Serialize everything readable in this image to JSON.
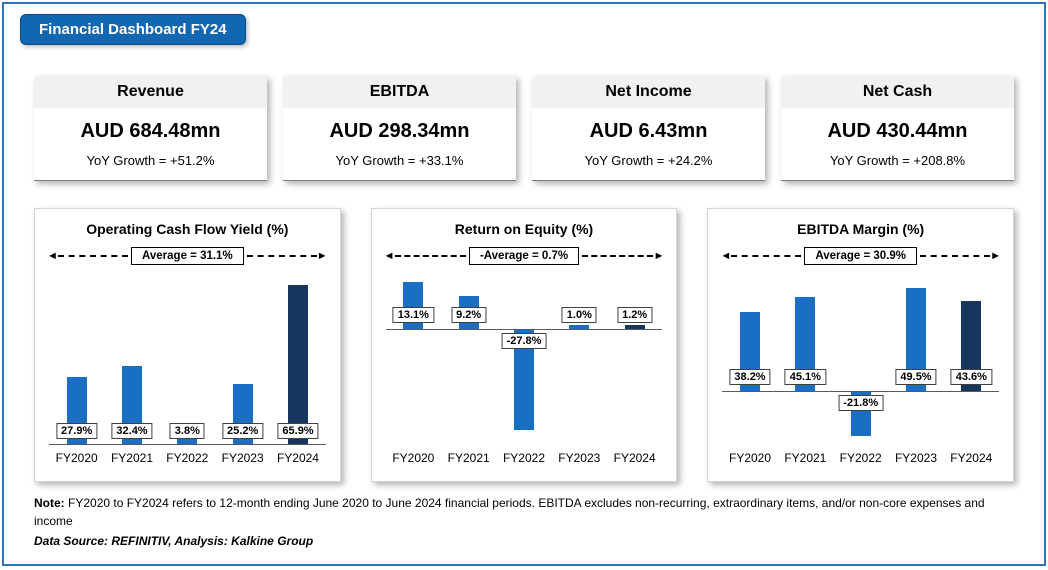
{
  "title": "Financial Dashboard FY24",
  "kpis": [
    {
      "label": "Revenue",
      "value": "AUD 684.48mn",
      "growth": "YoY Growth = +51.2%"
    },
    {
      "label": "EBITDA",
      "value": "AUD 298.34mn",
      "growth": "YoY Growth = +33.1%"
    },
    {
      "label": "Net Income",
      "value": "AUD 6.43mn",
      "growth": "YoY Growth = +24.2%"
    },
    {
      "label": "Net Cash",
      "value": "AUD 430.44mn",
      "growth": "YoY Growth = +208.8%"
    }
  ],
  "chart_data": [
    {
      "type": "bar",
      "title": "Operating Cash Flow Yield (%)",
      "average_label": "Average = 31.1%",
      "categories": [
        "FY2020",
        "FY2021",
        "FY2022",
        "FY2023",
        "FY2024"
      ],
      "values": [
        27.9,
        32.4,
        3.8,
        25.2,
        65.9
      ],
      "labels": [
        "27.9%",
        "32.4%",
        "3.8%",
        "25.2%",
        "65.9%"
      ],
      "ylim": [
        0,
        70
      ],
      "bar_color": "#1a6fc4",
      "last_bar_color": "#17365d",
      "legend": "none",
      "grid": "off"
    },
    {
      "type": "bar",
      "title": "Return on Equity (%)",
      "average_label": "-Average = 0.7%",
      "categories": [
        "FY2020",
        "FY2021",
        "FY2022",
        "FY2023",
        "FY2024"
      ],
      "values": [
        13.1,
        9.2,
        -27.8,
        1.0,
        1.2
      ],
      "labels": [
        "13.1%",
        "9.2%",
        "-27.8%",
        "1.0%",
        "1.2%"
      ],
      "ylim": [
        -32,
        15
      ],
      "bar_color": "#1a6fc4",
      "last_bar_color": "#17365d",
      "legend": "none",
      "grid": "off"
    },
    {
      "type": "bar",
      "title": "EBITDA Margin (%)",
      "average_label": "Average = 30.9%",
      "categories": [
        "FY2020",
        "FY2021",
        "FY2022",
        "FY2023",
        "FY2024"
      ],
      "values": [
        38.2,
        45.1,
        -21.8,
        49.5,
        43.6
      ],
      "labels": [
        "38.2%",
        "45.1%",
        "-21.8%",
        "49.5%",
        "43.6%"
      ],
      "ylim": [
        -26,
        56
      ],
      "bar_color": "#1a6fc4",
      "last_bar_color": "#17365d",
      "legend": "none",
      "grid": "off"
    }
  ],
  "arrows": {
    "left": "◄",
    "right": "►"
  },
  "footer": {
    "note_label": "Note:",
    "note_text": " FY2020 to FY2024 refers to 12-month ending June 2020 to June 2024 financial periods. EBITDA excludes non-recurring, extraordinary items, and/or non-core expenses and income",
    "source": "Data Source: REFINITIV, Analysis: Kalkine Group"
  }
}
